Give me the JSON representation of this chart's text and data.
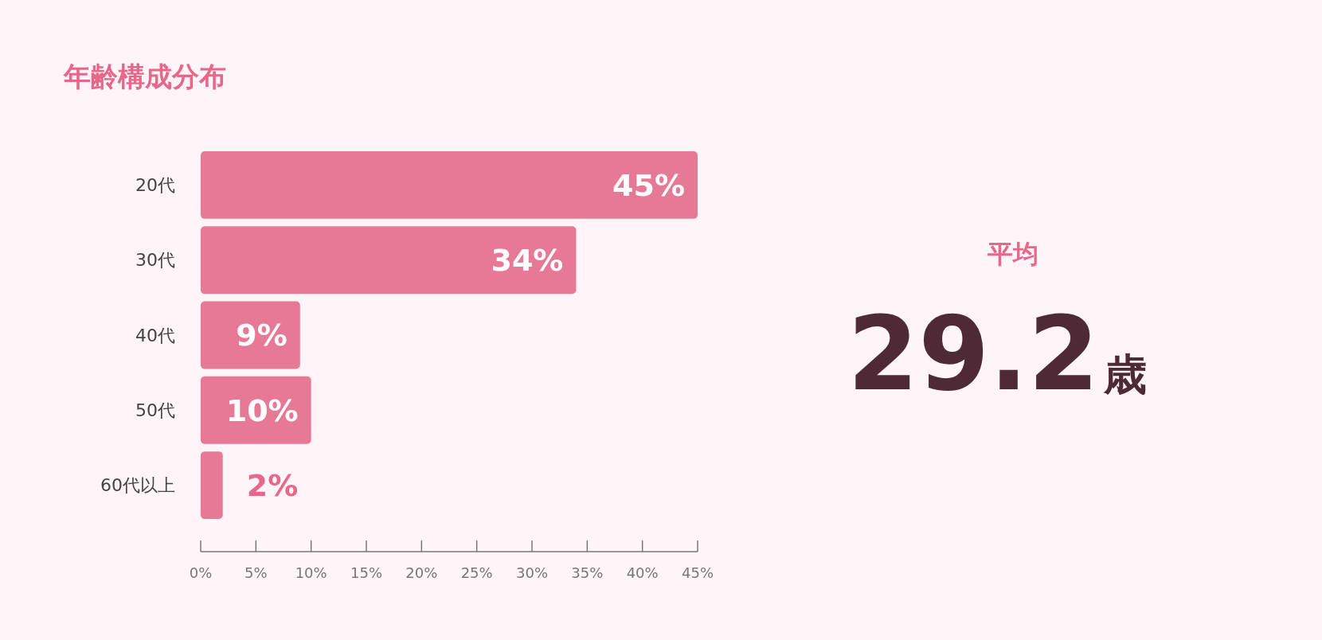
{
  "chart_data": {
    "type": "bar",
    "orientation": "horizontal",
    "title": "年齢構成分布",
    "categories": [
      "20代",
      "30代",
      "40代",
      "50代",
      "60代以上"
    ],
    "values": [
      45,
      34,
      9,
      10,
      2
    ],
    "value_labels": [
      "45%",
      "34%",
      "9%",
      "10%",
      "2%"
    ],
    "color": "#e67a96",
    "xlim": [
      0,
      45
    ],
    "xticks": [
      {
        "value": 0,
        "label": "0%"
      },
      {
        "value": 5,
        "label": "5%"
      },
      {
        "value": 10,
        "label": "10%"
      },
      {
        "value": 15,
        "label": "15%"
      },
      {
        "value": 20,
        "label": "20%"
      },
      {
        "value": 25,
        "label": "25%"
      },
      {
        "value": 30,
        "label": "30%"
      },
      {
        "value": 35,
        "label": "35%"
      },
      {
        "value": 40,
        "label": "40%"
      },
      {
        "value": 45,
        "label": "45%"
      }
    ],
    "grid": false,
    "annotations": [
      "平均",
      "29.2",
      "歳"
    ]
  }
}
